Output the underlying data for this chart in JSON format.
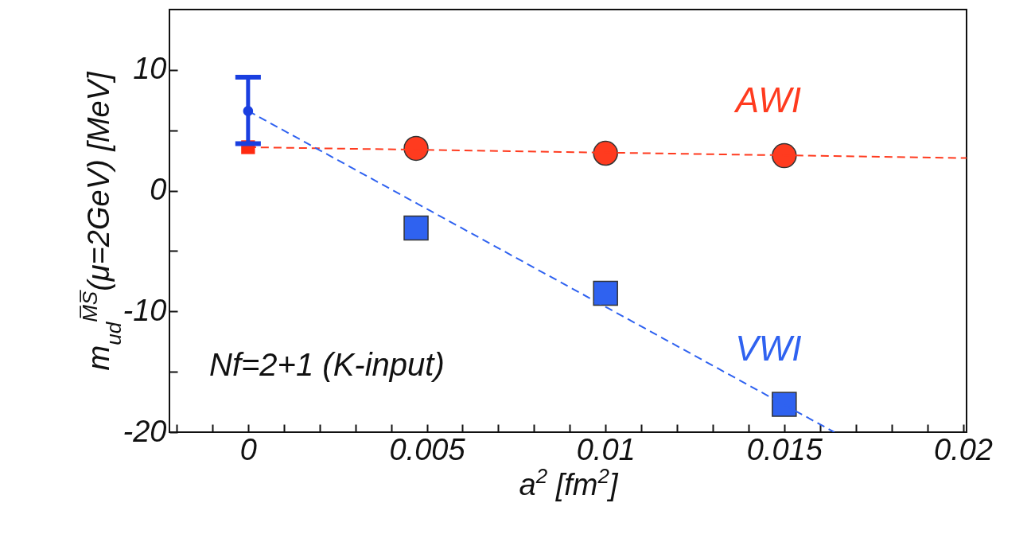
{
  "chart_data": {
    "type": "scatter",
    "xlabel": "a$^{2}$ [fm$^{2}$]",
    "ylabel": "m$_{ud}$$^{M̅S̅}$(μ=2GeV) [MeV]",
    "xlim": [
      -0.0022,
      0.0201
    ],
    "ylim": [
      -20,
      15
    ],
    "xticks": [
      {
        "value": -0.002,
        "label": null
      },
      {
        "value": -0.001,
        "label": null
      },
      {
        "value": 0,
        "label": "0"
      },
      {
        "value": 0.001,
        "label": null
      },
      {
        "value": 0.002,
        "label": null
      },
      {
        "value": 0.003,
        "label": null
      },
      {
        "value": 0.004,
        "label": null
      },
      0.005,
      {
        "value": 0.006,
        "label": null
      },
      {
        "value": 0.007,
        "label": null
      },
      {
        "value": 0.008,
        "label": null
      },
      {
        "value": 0.009,
        "label": null
      },
      0.01,
      {
        "value": 0.011,
        "label": null
      },
      {
        "value": 0.012,
        "label": null
      },
      {
        "value": 0.013,
        "label": null
      },
      {
        "value": 0.014,
        "label": null
      },
      0.015,
      {
        "value": 0.016,
        "label": null
      },
      {
        "value": 0.017,
        "label": null
      },
      {
        "value": 0.018,
        "label": null
      },
      {
        "value": 0.019,
        "label": null
      },
      0.02
    ],
    "yticks": [
      -20,
      {
        "value": -15,
        "label": null
      },
      -10,
      {
        "value": -5,
        "label": null
      },
      0,
      {
        "value": 5,
        "label": null
      },
      10
    ],
    "grid": false,
    "annotations": [
      "Nf=2+1 (K-input)"
    ],
    "series": [
      {
        "name": "AWI",
        "type": "scatter",
        "marker": "circle",
        "color": "#ff3b1f",
        "x": [
          0.0047,
          0.01,
          0.015
        ],
        "values": [
          3.5,
          3.1,
          2.9
        ]
      },
      {
        "name": "VWI",
        "type": "scatter",
        "marker": "square",
        "color": "#2f62f0",
        "x": [
          0.0047,
          0.01,
          0.015
        ],
        "values": [
          -3.1,
          -8.5,
          -17.7
        ]
      },
      {
        "type": "line",
        "line_style": "dashed",
        "color": "#ff3b1f",
        "x": [
          0,
          0.0201
        ],
        "values": [
          3.6,
          2.7
        ]
      },
      {
        "type": "line",
        "line_style": "dashed",
        "color": "#2f62f0",
        "x": [
          0,
          0.0164
        ],
        "values": [
          6.6,
          -20
        ]
      },
      {
        "type": "scatter",
        "marker": "square",
        "color": "#ff2a10",
        "x": [
          0
        ],
        "values": [
          3.6
        ]
      },
      {
        "type": "scatter",
        "marker": "circle",
        "color": "#1a3fe0",
        "x": [
          0
        ],
        "values": [
          6.6
        ],
        "errors": [
          [
            3.9,
            9.4
          ]
        ]
      }
    ]
  }
}
